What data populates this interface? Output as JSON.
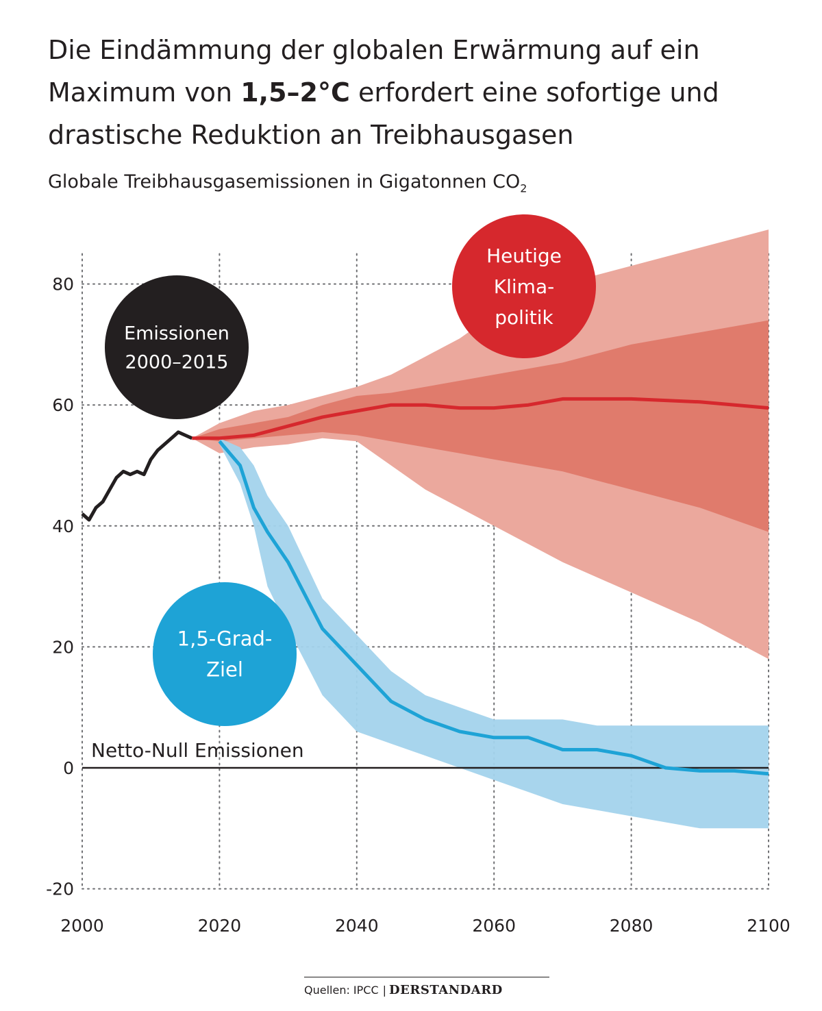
{
  "title": {
    "part1": "Die Eindämmung der globalen Erwärmung auf ein Maximum von ",
    "bold": "1,5–2°C",
    "part2": " erfordert eine sofortige und drastische Reduktion an Treibhausgasen"
  },
  "subtitle": {
    "text": "Globale Treibhausgasemissionen in Gigatonnen CO",
    "sub": "2"
  },
  "source": {
    "label": "Quellen: IPCC",
    "separator": "|",
    "brand": "DERSTANDARD"
  },
  "colors": {
    "historical": "#231f20",
    "policy": "#d6282d",
    "policy_outer": "#eba89d",
    "policy_inner": "#e07b6c",
    "target": "#1ea3d6",
    "target_band": "#a3d3ec",
    "target_band_dark": "#85b3cc",
    "grid": "#6d6e71"
  },
  "chart_data": {
    "type": "line",
    "xlim": [
      2000,
      2100
    ],
    "ylim": [
      -20,
      85
    ],
    "x_ticks": [
      2000,
      2020,
      2040,
      2060,
      2080,
      2100
    ],
    "y_ticks": [
      -20,
      0,
      20,
      40,
      60,
      80
    ],
    "grid": "dotted",
    "zero_line_label": "Netto-Null Emissionen",
    "series": [
      {
        "name": "Emissionen 2000–2015",
        "label_lines": [
          "Emissionen",
          "2000–2015"
        ],
        "x": [
          2000,
          2001,
          2002,
          2003,
          2004,
          2005,
          2006,
          2007,
          2008,
          2009,
          2010,
          2011,
          2012,
          2013,
          2014,
          2015,
          2016
        ],
        "y": [
          42,
          41,
          43,
          44,
          46,
          48,
          49,
          48.5,
          49,
          48.5,
          51,
          52.5,
          53.5,
          54.5,
          55.5,
          55,
          54.5
        ]
      },
      {
        "name": "Heutige Klimapolitik",
        "label_lines": [
          "Heutige",
          "Klima-",
          "politik"
        ],
        "x": [
          2016,
          2020,
          2025,
          2030,
          2035,
          2040,
          2045,
          2050,
          2055,
          2060,
          2065,
          2070,
          2080,
          2090,
          2100
        ],
        "y": [
          54.5,
          54.5,
          55,
          56.5,
          58,
          59,
          60,
          60,
          59.5,
          59.5,
          60,
          61,
          61,
          60.5,
          59.5
        ],
        "outer_upper": [
          54.5,
          57,
          59,
          60,
          61.5,
          63,
          65,
          68,
          71,
          75,
          78,
          80,
          83,
          86,
          89
        ],
        "outer_lower": [
          54.5,
          52,
          53,
          53.5,
          54.5,
          54,
          50,
          46,
          43,
          40,
          37,
          34,
          29,
          24,
          18
        ],
        "inner_upper": [
          54.5,
          56,
          57,
          58,
          60,
          61.5,
          62,
          63,
          64,
          65,
          66,
          67,
          70,
          72,
          74
        ],
        "inner_lower": [
          54.5,
          54,
          54.5,
          55,
          55.5,
          55,
          54,
          53,
          52,
          51,
          50,
          49,
          46,
          43,
          39
        ]
      },
      {
        "name": "1,5-Grad-Ziel",
        "label_lines": [
          "1,5-Grad-",
          "Ziel"
        ],
        "x": [
          2020,
          2023,
          2025,
          2027,
          2030,
          2035,
          2040,
          2045,
          2050,
          2055,
          2060,
          2065,
          2070,
          2075,
          2080,
          2085,
          2090,
          2095,
          2100
        ],
        "y": [
          54,
          50,
          43,
          39,
          34,
          23,
          17,
          11,
          8,
          6,
          5,
          5,
          3,
          3,
          2,
          0,
          -0.5,
          -0.5,
          -1
        ],
        "upper": [
          54.5,
          53,
          50,
          45,
          40,
          28,
          22,
          16,
          12,
          10,
          8,
          8,
          8,
          7,
          7,
          7,
          7,
          7,
          7
        ],
        "lower": [
          53.5,
          47,
          40,
          30,
          23,
          12,
          6,
          4,
          2,
          0,
          -2,
          -4,
          -6,
          -7,
          -8,
          -9,
          -10,
          -10,
          -10
        ]
      }
    ]
  }
}
